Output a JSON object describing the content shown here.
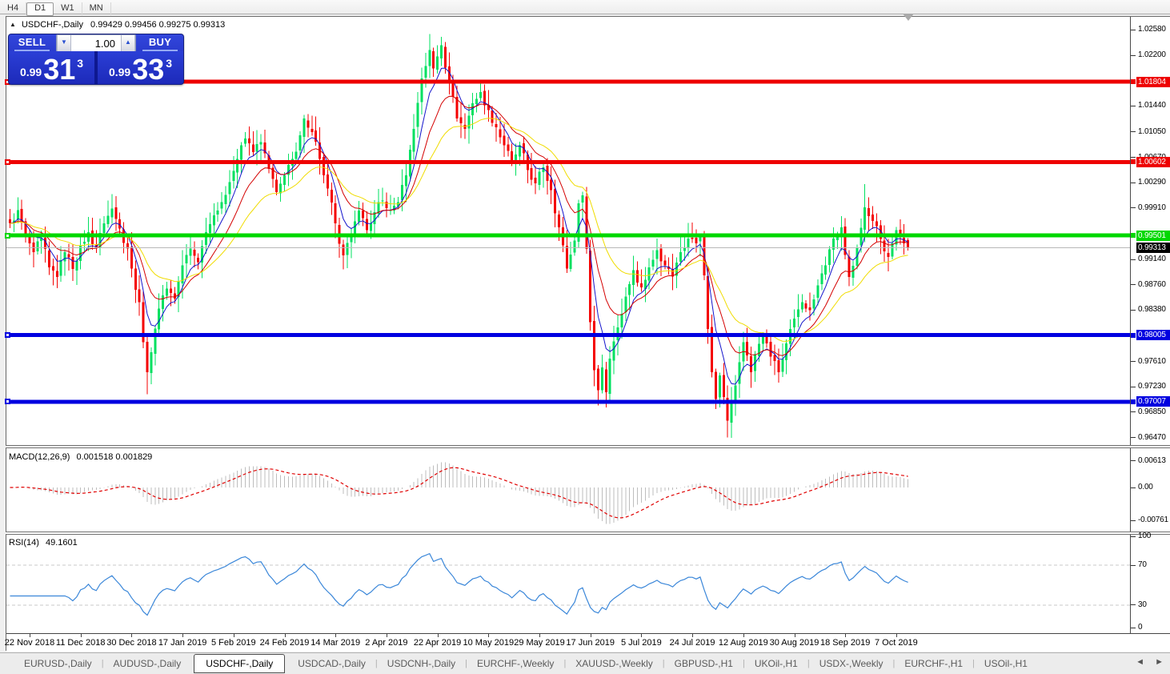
{
  "toolbar": {
    "timeframes": [
      "H4",
      "D1",
      "W1",
      "MN"
    ],
    "active_timeframe": "D1"
  },
  "chart": {
    "symbol": "USDCHF-,Daily",
    "ohlc": "0.99429 0.99456 0.99275 0.99313"
  },
  "trade_panel": {
    "sell_label": "SELL",
    "buy_label": "BUY",
    "volume": "1.00",
    "sell_price": {
      "prefix": "0.99",
      "big": "31",
      "sup": "3"
    },
    "buy_price": {
      "prefix": "0.99",
      "big": "33",
      "sup": "3"
    }
  },
  "indicators": {
    "macd_label": "MACD(12,26,9)",
    "macd_values": "0.001518 0.001829",
    "rsi_label": "RSI(14)",
    "rsi_value": "49.1601"
  },
  "icons": {
    "collapse_triangle": "▲",
    "autoscroll_triangle": "▼",
    "spin_down": "▼",
    "spin_up": "▲",
    "scroll_left": "◄",
    "scroll_right": "►",
    "separator": "|"
  },
  "tabs": {
    "items": [
      "EURUSD-,Daily",
      "AUDUSD-,Daily",
      "USDCHF-,Daily",
      "USDCAD-,Daily",
      "USDCNH-,Daily",
      "EURCHF-,Weekly",
      "XAUUSD-,Weekly",
      "GBPUSD-,H1",
      "UKOil-,H1",
      "USDX-,Weekly",
      "EURCHF-,H1",
      "USOil-,H1"
    ],
    "active_index": 2
  },
  "chart_data": {
    "type": "candlestick",
    "symbol": "USDCHF",
    "timeframe": "Daily",
    "candle_count": 230,
    "last_candle": {
      "open": 0.99429,
      "high": 0.99456,
      "low": 0.99275,
      "close": 0.99313
    },
    "price_path": [
      [
        0,
        0.9968
      ],
      [
        2,
        0.9988
      ],
      [
        4,
        0.995
      ],
      [
        6,
        0.9925
      ],
      [
        8,
        0.9945
      ],
      [
        10,
        0.9902
      ],
      [
        12,
        0.9888
      ],
      [
        14,
        0.9925
      ],
      [
        16,
        0.99
      ],
      [
        18,
        0.9935
      ],
      [
        20,
        0.9955
      ],
      [
        22,
        0.993
      ],
      [
        24,
        0.9968
      ],
      [
        26,
        0.999
      ],
      [
        28,
        0.996
      ],
      [
        30,
        0.993
      ],
      [
        31,
        0.99
      ],
      [
        33,
        0.985
      ],
      [
        34,
        0.979
      ],
      [
        35,
        0.9745
      ],
      [
        36,
        0.9775
      ],
      [
        37,
        0.981
      ],
      [
        38,
        0.984
      ],
      [
        40,
        0.987
      ],
      [
        42,
        0.9855
      ],
      [
        44,
        0.9905
      ],
      [
        46,
        0.993
      ],
      [
        48,
        0.991
      ],
      [
        50,
        0.9955
      ],
      [
        52,
        0.998
      ],
      [
        54,
        1.0
      ],
      [
        56,
        1.003
      ],
      [
        58,
        1.0065
      ],
      [
        60,
        1.0095
      ],
      [
        62,
        1.0075
      ],
      [
        64,
        1.009
      ],
      [
        66,
        1.005
      ],
      [
        68,
        1.0015
      ],
      [
        70,
        1.004
      ],
      [
        72,
        1.0065
      ],
      [
        74,
        1.01
      ],
      [
        75,
        1.0125
      ],
      [
        77,
        1.0105
      ],
      [
        79,
        1.0065
      ],
      [
        81,
        1.002
      ],
      [
        83,
        0.9968
      ],
      [
        85,
        0.992
      ],
      [
        87,
        0.995
      ],
      [
        89,
        0.9987
      ],
      [
        91,
        0.9958
      ],
      [
        93,
        0.9985
      ],
      [
        95,
        1.0002
      ],
      [
        97,
        0.9988
      ],
      [
        99,
        1.0
      ],
      [
        101,
        1.004
      ],
      [
        103,
        1.011
      ],
      [
        105,
        1.0185
      ],
      [
        107,
        1.0228
      ],
      [
        108,
        1.02
      ],
      [
        110,
        1.0235
      ],
      [
        112,
        1.018
      ],
      [
        114,
        1.0125
      ],
      [
        116,
        1.011
      ],
      [
        118,
        1.0148
      ],
      [
        120,
        1.0165
      ],
      [
        122,
        1.0138
      ],
      [
        124,
        1.0112
      ],
      [
        126,
        1.0085
      ],
      [
        128,
        1.0058
      ],
      [
        130,
        1.0085
      ],
      [
        132,
        1.0048
      ],
      [
        134,
        1.0028
      ],
      [
        136,
        1.0052
      ],
      [
        138,
        1.0018
      ],
      [
        140,
        0.9962
      ],
      [
        142,
        0.99
      ],
      [
        144,
        0.9942
      ],
      [
        145,
        0.9998
      ],
      [
        146,
        1.001
      ],
      [
        147,
        0.993
      ],
      [
        148,
        0.982
      ],
      [
        149,
        0.9748
      ],
      [
        150,
        0.9718
      ],
      [
        151,
        0.9752
      ],
      [
        152,
        0.9715
      ],
      [
        153,
        0.9765
      ],
      [
        155,
        0.9812
      ],
      [
        157,
        0.9858
      ],
      [
        159,
        0.9898
      ],
      [
        161,
        0.9872
      ],
      [
        163,
        0.9902
      ],
      [
        165,
        0.9928
      ],
      [
        167,
        0.9905
      ],
      [
        169,
        0.9888
      ],
      [
        171,
        0.9925
      ],
      [
        173,
        0.9945
      ],
      [
        175,
        0.9938
      ],
      [
        176,
        0.9948
      ],
      [
        177,
        0.989
      ],
      [
        178,
        0.981
      ],
      [
        179,
        0.9745
      ],
      [
        180,
        0.9705
      ],
      [
        181,
        0.974
      ],
      [
        182,
        0.9708
      ],
      [
        183,
        0.9672
      ],
      [
        184,
        0.97
      ],
      [
        185,
        0.9725
      ],
      [
        186,
        0.976
      ],
      [
        187,
        0.979
      ],
      [
        188,
        0.977
      ],
      [
        189,
        0.9745
      ],
      [
        190,
        0.9772
      ],
      [
        192,
        0.98
      ],
      [
        194,
        0.9768
      ],
      [
        196,
        0.9745
      ],
      [
        198,
        0.9788
      ],
      [
        200,
        0.9825
      ],
      [
        202,
        0.985
      ],
      [
        204,
        0.9838
      ],
      [
        206,
        0.9875
      ],
      [
        208,
        0.9905
      ],
      [
        210,
        0.9945
      ],
      [
        212,
        0.9962
      ],
      [
        214,
        0.9888
      ],
      [
        216,
        0.9932
      ],
      [
        218,
        0.9992
      ],
      [
        220,
        0.9972
      ],
      [
        222,
        0.9945
      ],
      [
        224,
        0.9918
      ],
      [
        226,
        0.9958
      ],
      [
        228,
        0.9938
      ],
      [
        229,
        0.9931
      ]
    ],
    "wick_overrides": {
      "35": {
        "low": 0.9712
      },
      "60": {
        "high": 1.0105
      },
      "75": {
        "high": 1.0131
      },
      "107": {
        "high": 1.0252
      },
      "110": {
        "high": 1.0248
      },
      "150": {
        "low": 0.9695
      },
      "152": {
        "low": 0.9692
      },
      "183": {
        "low": 0.9647
      },
      "218": {
        "high": 1.0027
      }
    },
    "moving_averages": [
      {
        "period": 6,
        "color": "#1414cc"
      },
      {
        "period": 13,
        "color": "#d40000"
      },
      {
        "period": 26,
        "color": "#f0dc00"
      }
    ],
    "h_lines": [
      {
        "price": 1.01804,
        "label": "1.01804",
        "color": "#ee0000",
        "width": 5
      },
      {
        "price": 1.00602,
        "label": "1.00602",
        "color": "#ee0000",
        "width": 5
      },
      {
        "price": 0.99501,
        "label": "0.99501",
        "color": "#00d800",
        "width": 5
      },
      {
        "price": 0.98005,
        "label": "0.98005",
        "color": "#0000e0",
        "width": 5
      },
      {
        "price": 0.97007,
        "label": "0.97007",
        "color": "#0000e0",
        "width": 5
      }
    ],
    "current_price": {
      "price": 0.99313,
      "label": "0.99313",
      "line_color": "#b8b8b8",
      "label_bg": "#000000"
    },
    "y_axis_ticks": [
      "1.02580",
      "1.02200",
      "1.01440",
      "1.01050",
      "1.00670",
      "1.00290",
      "0.99910",
      "0.99140",
      "0.98760",
      "0.98380",
      "0.97610",
      "0.97230",
      "0.96850",
      "0.96470"
    ],
    "x_axis_labels": [
      "22 Nov 2018",
      "11 Dec 2018",
      "30 Dec 2018",
      "17 Jan 2019",
      "5 Feb 2019",
      "24 Feb 2019",
      "14 Mar 2019",
      "2 Apr 2019",
      "22 Apr 2019",
      "10 May 2019",
      "29 May 2019",
      "17 Jun 2019",
      "5 Jul 2019",
      "24 Jul 2019",
      "12 Aug 2019",
      "30 Aug 2019",
      "18 Sep 2019",
      "7 Oct 2019"
    ],
    "macd": {
      "params": [
        12,
        26,
        9
      ],
      "axis": [
        "0.00613",
        "0.00",
        "-0.00761"
      ],
      "hist_color": "#bdbdbd",
      "signal_color": "#e00000"
    },
    "rsi": {
      "period": 14,
      "axis": [
        "100",
        "70",
        "30",
        "0"
      ],
      "levels": [
        70,
        30
      ],
      "color": "#3b87d9"
    },
    "colors": {
      "bull": "#00e060",
      "bear": "#f40000",
      "background": "#ffffff"
    }
  }
}
